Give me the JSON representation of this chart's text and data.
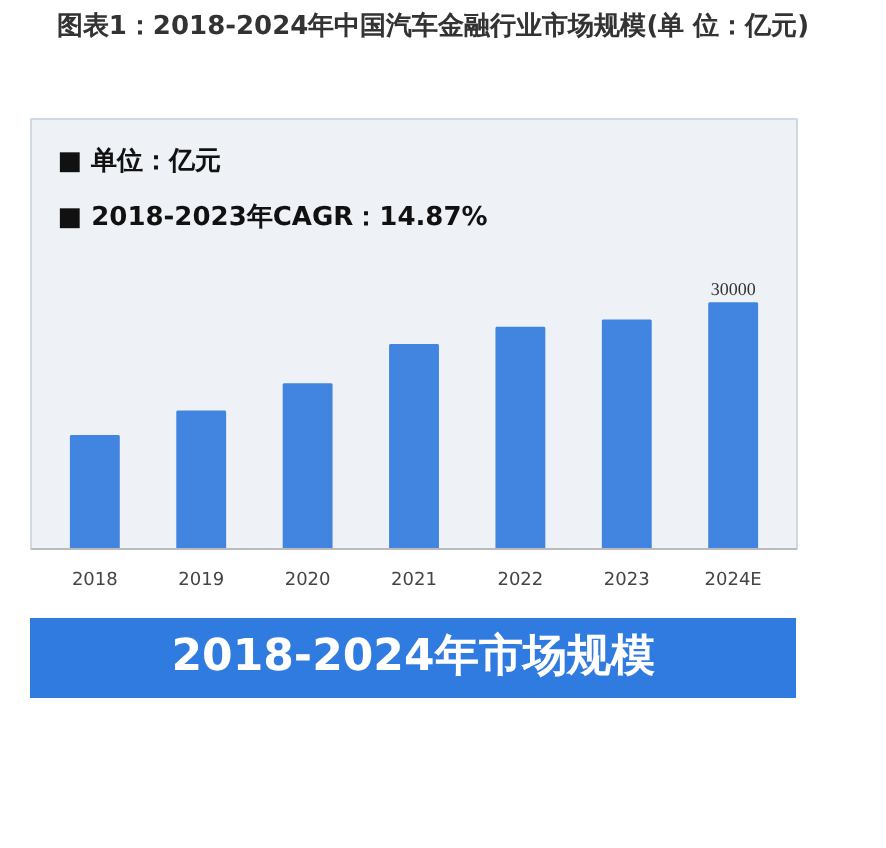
{
  "chart_data": {
    "type": "bar",
    "title": "图表1：2018-2024年中国汽车金融行业市场规模(单 位：亿元)",
    "categories": [
      "2018",
      "2019",
      "2020",
      "2021",
      "2022",
      "2023",
      "2024E"
    ],
    "values": [
      13800,
      16800,
      20100,
      24900,
      27000,
      27900,
      30000
    ],
    "value_labels": [
      null,
      null,
      null,
      null,
      null,
      null,
      "30000"
    ],
    "tick_labels": "x",
    "color": "#4185e0",
    "grid": false,
    "annotations": [
      "■  单位：亿元",
      "■  2018-2023年CAGR：14.87%",
      "2018-2024年市场规模"
    ]
  }
}
